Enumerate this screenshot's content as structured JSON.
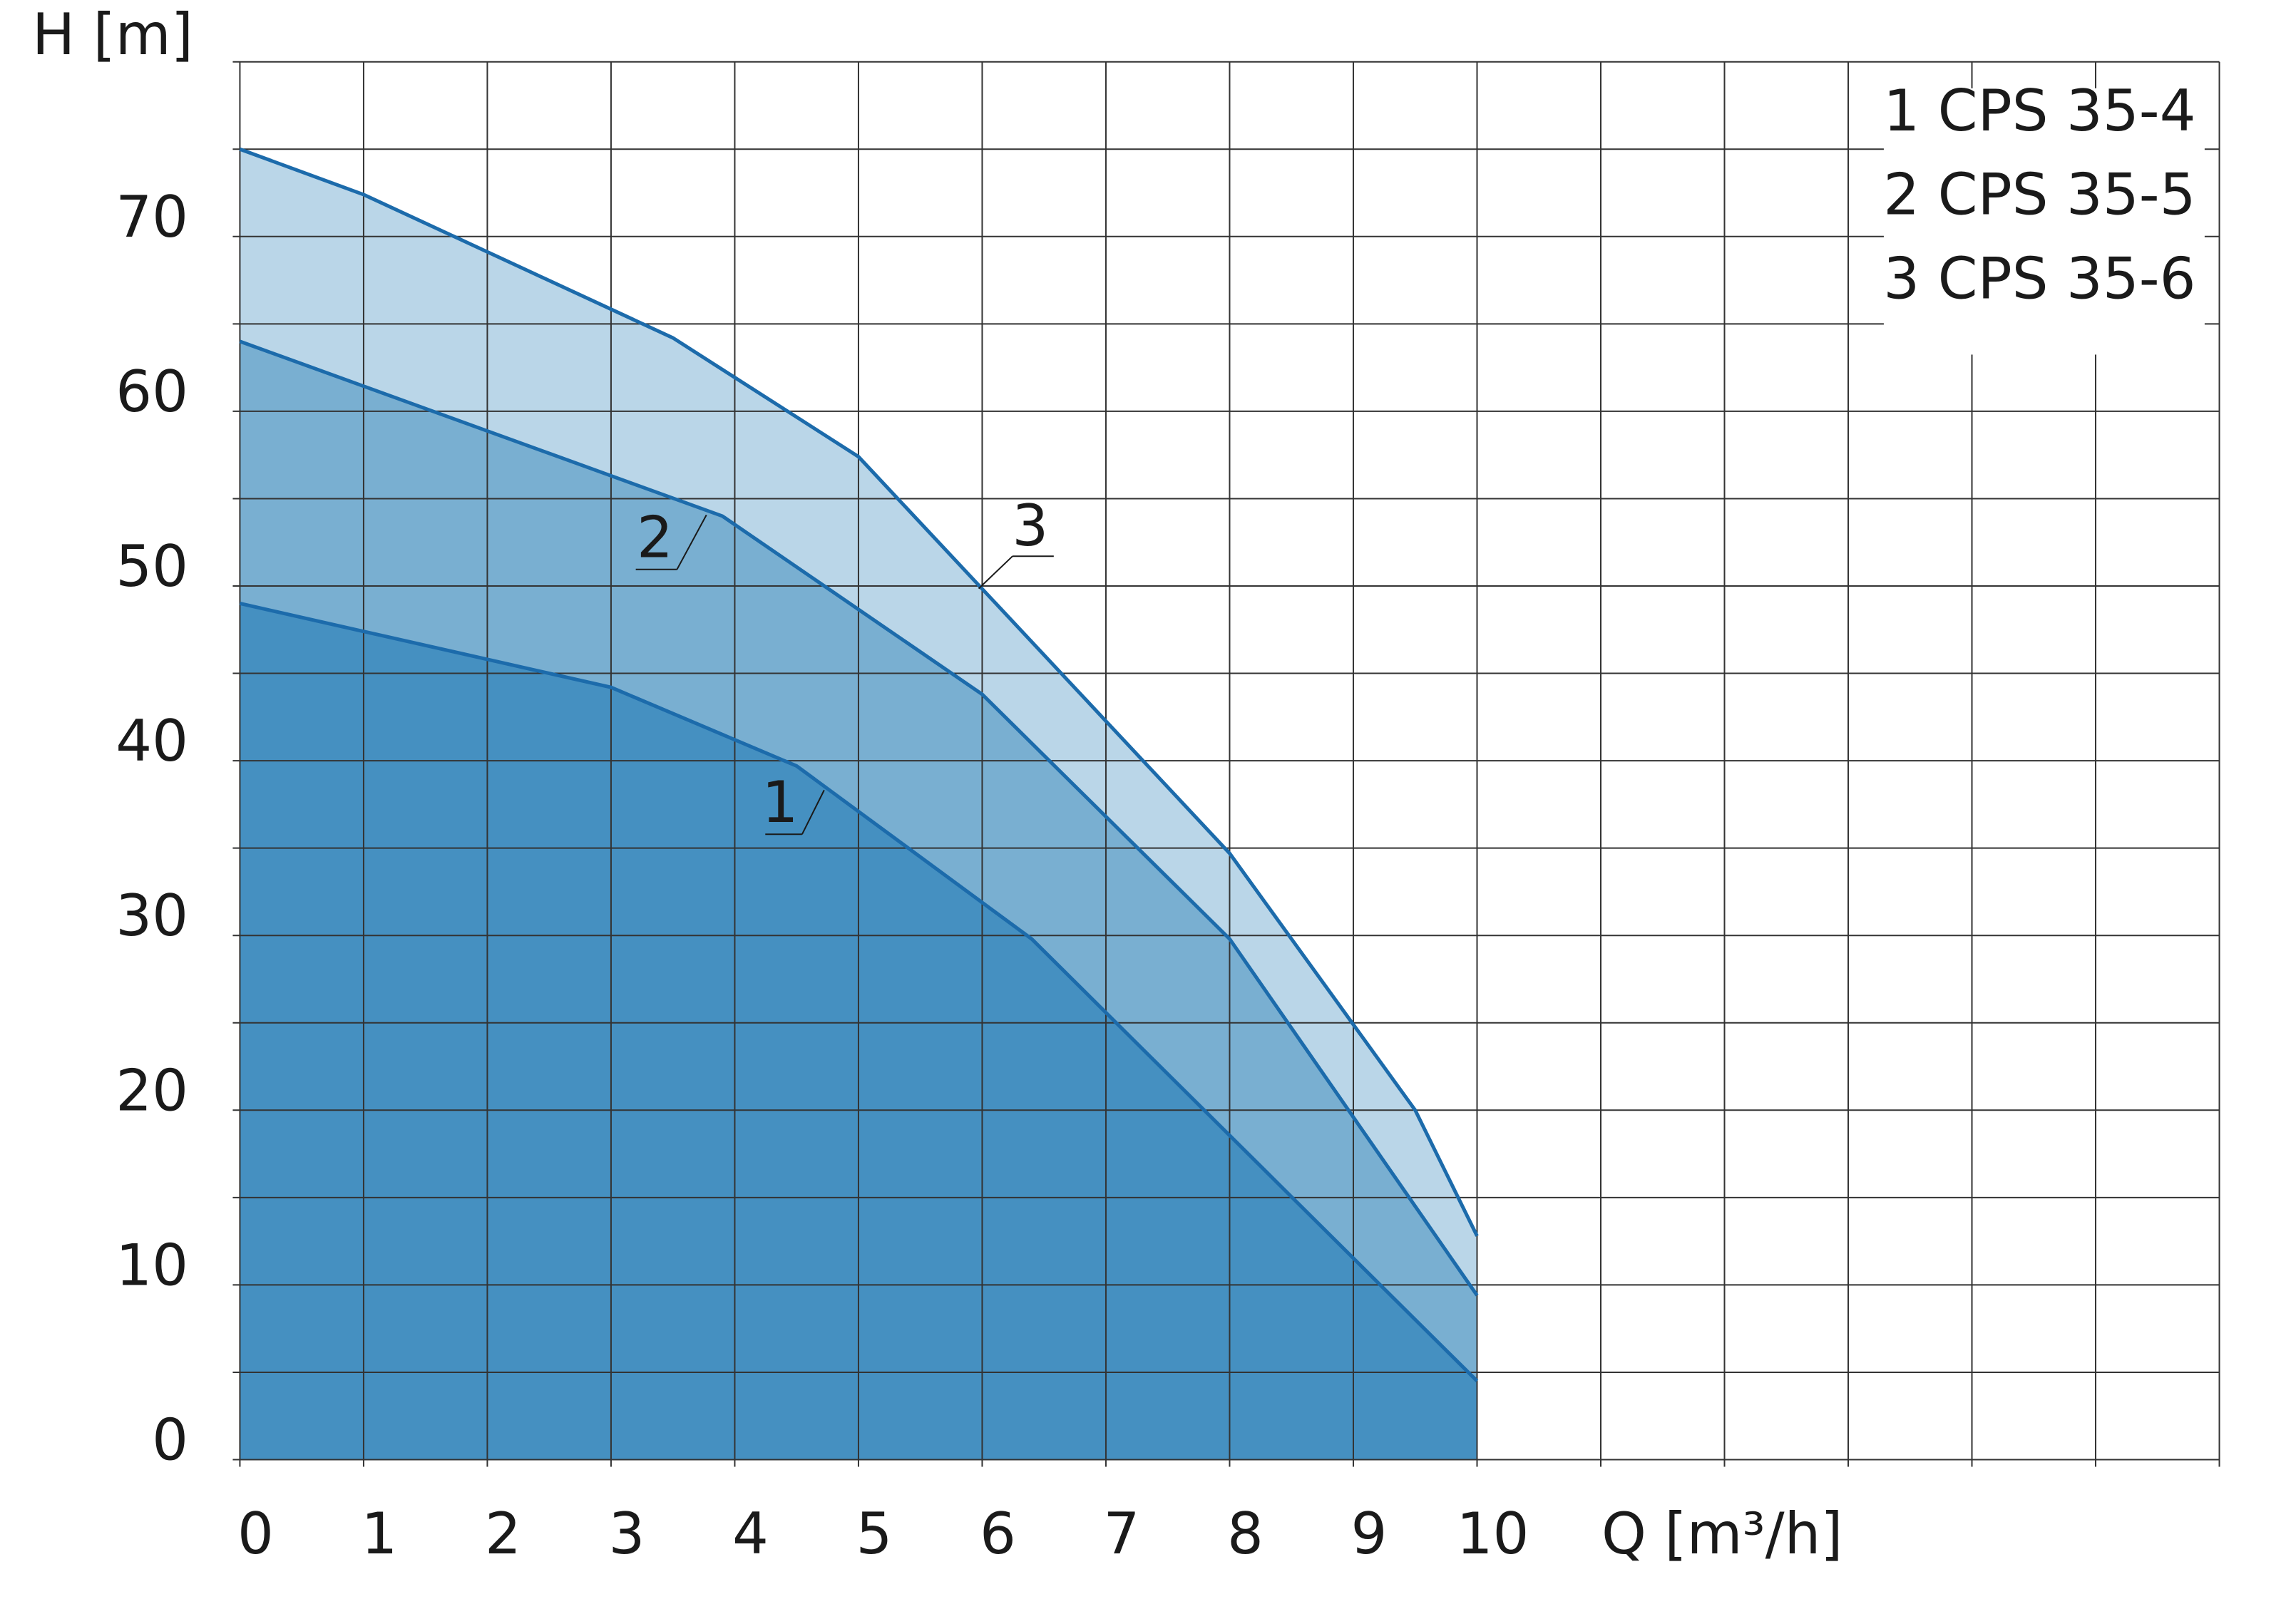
{
  "chart_data": {
    "type": "area",
    "y_label": "H [m]",
    "x_label": "Q [m³/h]",
    "xlim": [
      0,
      16
    ],
    "ylim": [
      0,
      80
    ],
    "xticks": [
      0,
      1,
      2,
      3,
      4,
      5,
      6,
      7,
      8,
      9,
      10
    ],
    "yticks": [
      0,
      10,
      20,
      30,
      40,
      50,
      60,
      70
    ],
    "xgrid": [
      0,
      1,
      2,
      3,
      4,
      5,
      6,
      7,
      8,
      9,
      10,
      11,
      12,
      13,
      14,
      15,
      16
    ],
    "ygrid": [
      0,
      5,
      10,
      15,
      20,
      25,
      30,
      35,
      40,
      45,
      50,
      55,
      60,
      65,
      70,
      75,
      80
    ],
    "grid": true,
    "legend": "top-right",
    "line_color": "#1c6bab",
    "series": [
      {
        "name": "1 CPS 35-4",
        "label": "1",
        "color": "#4590c1",
        "x": [
          0,
          3,
          4.5,
          6.4,
          10
        ],
        "values": [
          49,
          44.2,
          39.7,
          29.8,
          4.5
        ]
      },
      {
        "name": "2 CPS 35-5",
        "label": "2",
        "color": "#79afd1",
        "x": [
          0,
          3.9,
          6,
          8,
          10
        ],
        "values": [
          64,
          54,
          43.8,
          29.8,
          9.4
        ]
      },
      {
        "name": "3 CPS 35-6",
        "label": "3",
        "color": "#bad6e8",
        "x": [
          0,
          1,
          3.5,
          5,
          8,
          9.5,
          10
        ],
        "values": [
          75,
          72.4,
          64.2,
          57.4,
          34.7,
          20,
          12.8
        ]
      }
    ]
  }
}
